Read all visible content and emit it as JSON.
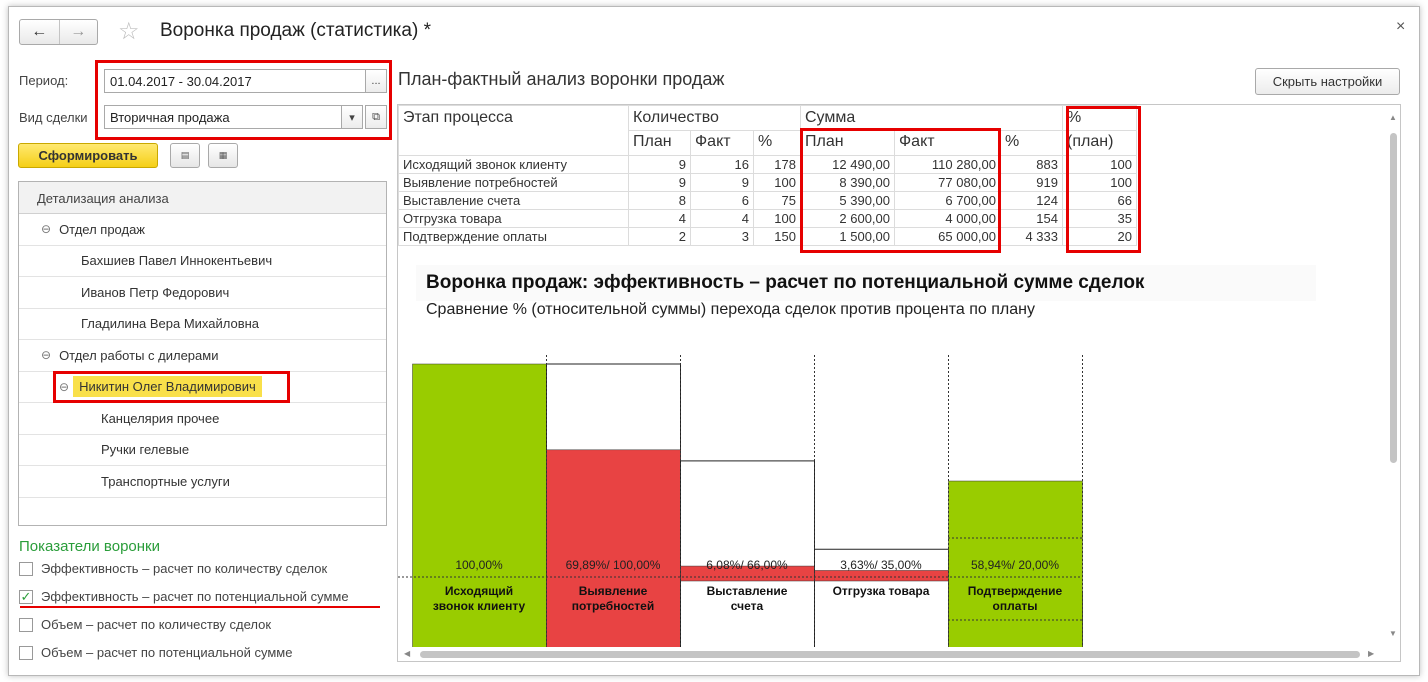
{
  "window": {
    "title": "Воронка продаж (статистика) *",
    "close": "×",
    "back": "←",
    "forward": "→",
    "star": "☆"
  },
  "filters": {
    "period_label": "Период:",
    "period_value": "01.04.2017 - 30.04.2017",
    "period_btn": "...",
    "deal_label": "Вид сделки",
    "deal_value": "Вторичная продажа"
  },
  "toolbar": {
    "generate": "Сформировать"
  },
  "tree": {
    "header": "Детализация анализа",
    "items": [
      {
        "label": "Отдел продаж",
        "level": 1,
        "group": true
      },
      {
        "label": "Бахшиев Павел Иннокентьевич",
        "level": 2
      },
      {
        "label": "Иванов Петр Федорович",
        "level": 2
      },
      {
        "label": "Гладилина Вера Михайловна",
        "level": 2
      },
      {
        "label": "Отдел работы с дилерами",
        "level": 1,
        "group": true
      },
      {
        "label": "Никитин Олег Владимирович",
        "level": 2,
        "group": true,
        "selected": true
      },
      {
        "label": "Канцелярия прочее",
        "level": 3
      },
      {
        "label": "Ручки гелевые",
        "level": 3
      },
      {
        "label": "Транспортные услуги",
        "level": 3
      }
    ]
  },
  "indicators": {
    "title": "Показатели воронки",
    "items": [
      {
        "label": "Эффективность – расчет по количеству сделок",
        "checked": false
      },
      {
        "label": "Эффективность – расчет по потенциальной сумме",
        "checked": true
      },
      {
        "label": "Объем – расчет по количеству сделок",
        "checked": false
      },
      {
        "label": "Объем – расчет по потенциальной сумме",
        "checked": false
      }
    ]
  },
  "right": {
    "title": "План-фактный анализ воронки продаж",
    "hide_settings": "Скрыть настройки"
  },
  "table": {
    "h_stage": "Этап процесса",
    "h_qty": "Количество",
    "h_sum": "Сумма",
    "h_pct_plan_1": "%",
    "h_pct_plan_2": "(план)",
    "sub_plan": "План",
    "sub_fact": "Факт",
    "sub_pct": "%",
    "rows": [
      {
        "stage": "Исходящий звонок клиенту",
        "qp": "9",
        "qf": "16",
        "qpct": "178",
        "sp": "12 490,00",
        "sf": "110 280,00",
        "spct": "883",
        "plan": "100"
      },
      {
        "stage": "Выявление потребностей",
        "qp": "9",
        "qf": "9",
        "qpct": "100",
        "sp": "8 390,00",
        "sf": "77 080,00",
        "spct": "919",
        "plan": "100"
      },
      {
        "stage": "Выставление счета",
        "qp": "8",
        "qf": "6",
        "qpct": "75",
        "sp": "5 390,00",
        "sf": "6 700,00",
        "spct": "124",
        "plan": "66"
      },
      {
        "stage": "Отгрузка товара",
        "qp": "4",
        "qf": "4",
        "qpct": "100",
        "sp": "2 600,00",
        "sf": "4 000,00",
        "spct": "154",
        "plan": "35"
      },
      {
        "stage": "Подтверждение оплаты",
        "qp": "2",
        "qf": "3",
        "qpct": "150",
        "sp": "1 500,00",
        "sf": "65 000,00",
        "spct": "4 333",
        "plan": "20"
      }
    ]
  },
  "chart_data": {
    "type": "bar",
    "title": "Воронка продаж: эффективность – расчет по потенциальной сумме сделок",
    "subtitle": "Сравнение % (относительной суммы) перехода сделок против процента по плану",
    "categories": [
      "Исходящий звонок клиенту",
      "Выявление потребностей",
      "Выставление счета",
      "Отгрузка товара",
      "Подтверждение оплаты"
    ],
    "category_labels": [
      [
        "Исходящий",
        "звонок клиенту"
      ],
      [
        "Выявление",
        "потребностей"
      ],
      [
        "Выставление",
        "счета"
      ],
      [
        "Отгрузка товара"
      ],
      [
        "Подтверждение",
        "оплаты"
      ]
    ],
    "value_labels": [
      "100,00%",
      "69,89%/ 100,00%",
      "6,08%/ 66,00%",
      "3,63%/ 35,00%",
      "58,94%/ 20,00%"
    ],
    "series": [
      {
        "values": [
          100.0,
          69.89,
          6.08,
          3.63,
          58.94
        ]
      },
      {
        "values": [
          100.0,
          100.0,
          66.0,
          35.0,
          20.0
        ]
      }
    ],
    "colors": {
      "green": "#99cc00",
      "red": "#e84343",
      "outline": "#222222"
    },
    "ylim": [
      0,
      100
    ]
  }
}
